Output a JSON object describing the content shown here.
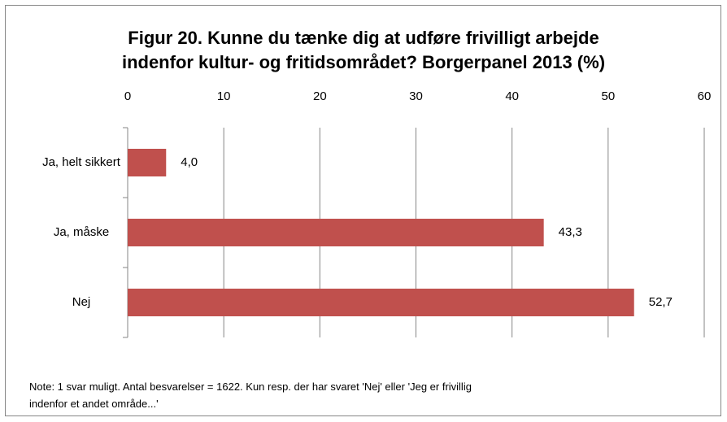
{
  "chart_data": {
    "type": "bar",
    "orientation": "horizontal",
    "title": "Figur 20. Kunne du tænke dig at udføre frivilligt arbejde indenfor kultur- og fritidsområdet? Borgerpanel 2013 (%)",
    "categories": [
      "Ja, helt sikkert",
      "Ja, måske",
      "Nej"
    ],
    "values": [
      4.0,
      43.3,
      52.7
    ],
    "value_labels": [
      "4,0",
      "43,3",
      "52,7"
    ],
    "color": "#c0504d",
    "xlim": [
      0,
      60
    ],
    "xticks": [
      0,
      10,
      20,
      30,
      40,
      50,
      60
    ],
    "grid": true,
    "note": "Note:  1 svar muligt. Antal besvarelser = 1622. Kun resp.  der har svaret 'Nej' eller 'Jeg er frivillig indenfor et andet område...'"
  }
}
